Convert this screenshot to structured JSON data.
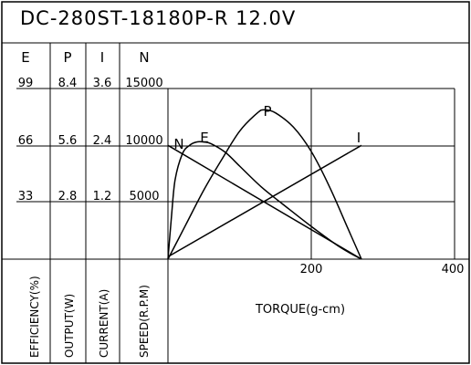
{
  "chart_data": {
    "type": "line",
    "title": "DC-280ST-18180P-R  12.0V",
    "xlabel": "TORQUE(g-cm)",
    "x_ticks": [
      "200",
      "400"
    ],
    "xlim": [
      0,
      400
    ],
    "grid": true,
    "columns": [
      {
        "key": "E",
        "header": "E",
        "label": "EFFICIENCY(%)",
        "ticks": [
          "99",
          "66",
          "33"
        ]
      },
      {
        "key": "P",
        "header": "P",
        "label": "OUTPUT(W)",
        "ticks": [
          "8.4",
          "5.6",
          "2.8"
        ]
      },
      {
        "key": "I",
        "header": "I",
        "label": "CURRENT(A)",
        "ticks": [
          "3.6",
          "2.4",
          "1.2"
        ]
      },
      {
        "key": "N",
        "header": "N",
        "label": "SPEED(R.P.M)",
        "ticks": [
          "15000",
          "10000",
          "5000"
        ]
      }
    ],
    "series": [
      {
        "name": "N",
        "unit": "rpm",
        "x": [
          0,
          270
        ],
        "y": [
          10000,
          0
        ]
      },
      {
        "name": "I",
        "unit": "A",
        "x": [
          0,
          270
        ],
        "y": [
          0.05,
          2.4
        ]
      },
      {
        "name": "P",
        "unit": "W",
        "x": [
          0,
          25,
          50,
          75,
          100,
          125,
          135,
          150,
          175,
          200,
          225,
          250,
          270
        ],
        "y": [
          0,
          1.7,
          3.4,
          4.9,
          6.3,
          7.2,
          7.35,
          7.2,
          6.5,
          5.3,
          3.6,
          1.6,
          0
        ]
      },
      {
        "name": "E",
        "unit": "%",
        "x": [
          0,
          5,
          10,
          20,
          30,
          40,
          50,
          60,
          80,
          100,
          130,
          160,
          200,
          240,
          270
        ],
        "y": [
          0,
          25,
          46,
          61,
          66,
          68,
          68,
          67,
          62,
          54,
          42,
          32,
          19,
          7,
          0
        ]
      }
    ]
  }
}
